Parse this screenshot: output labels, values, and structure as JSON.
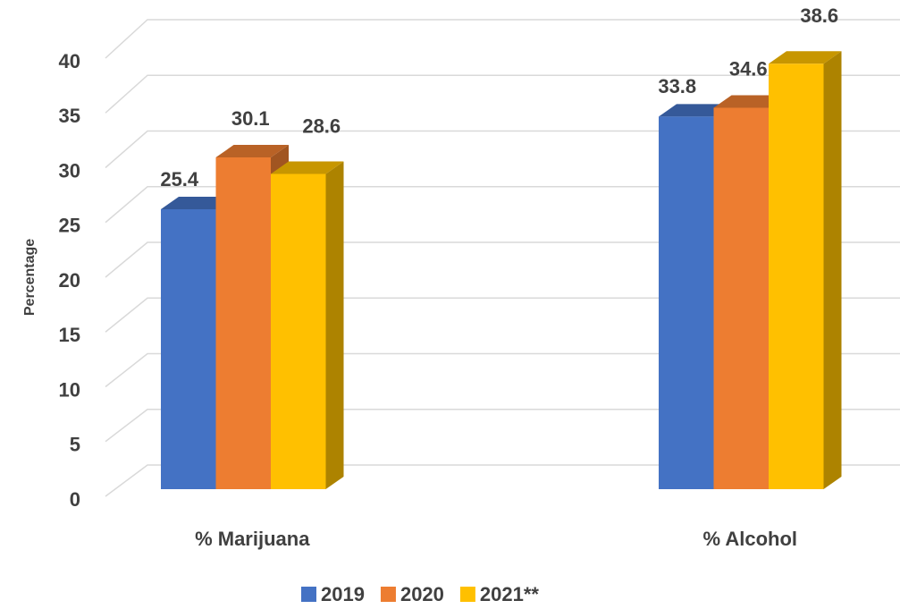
{
  "chart_data": {
    "type": "bar3d",
    "y_label": "Percentage",
    "categories": [
      "% Marijuana",
      "% Alcohol"
    ],
    "series": [
      {
        "name": "2019",
        "color": "#4472c4",
        "values": [
          25.4,
          33.8
        ]
      },
      {
        "name": "2020",
        "color": "#ed7d31",
        "values": [
          30.1,
          34.6
        ]
      },
      {
        "name": "2021**",
        "color": "#ffc000",
        "values": [
          28.6,
          38.6
        ]
      }
    ],
    "ylim": [
      0,
      40
    ],
    "yticks": [
      0,
      5,
      10,
      15,
      20,
      25,
      30,
      35,
      40
    ],
    "grid": true,
    "legend": "bottom"
  }
}
